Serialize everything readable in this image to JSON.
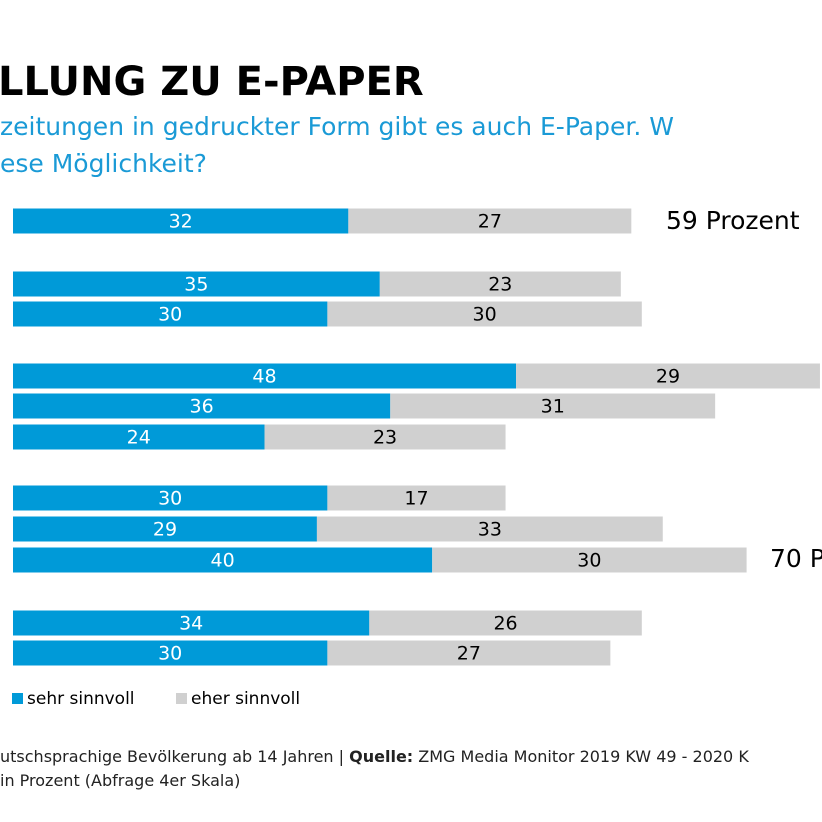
{
  "chart_data": {
    "type": "stacked-barh",
    "title": "LLUNG ZU E-PAPER",
    "subtitle": [
      "zeitungen in gedruckter Form gibt es auch E-Paper. W",
      "ese Möglichkeit?"
    ],
    "categories": [
      null,
      null,
      null,
      null,
      null,
      null,
      null,
      null,
      null,
      null,
      null
    ],
    "series": [
      {
        "name": "sehr sinnvoll",
        "color": "#009ad8",
        "values": [
          32,
          35,
          30,
          48,
          36,
          24,
          30,
          29,
          40,
          34,
          30
        ]
      },
      {
        "name": "eher sinnvoll",
        "color": "#d0d0d0",
        "values": [
          27,
          23,
          30,
          29,
          31,
          23,
          17,
          33,
          30,
          26,
          27
        ]
      }
    ],
    "annotations": [
      "59 Prozent",
      "70 P"
    ],
    "footer": [
      [
        {
          "text": "utschsprachige Bevölkerung ab 14 Jahren | "
        },
        {
          "text": "Quelle:",
          "bold": true
        },
        {
          "text": " ZMG Media Monitor 2019 KW 49 - 2020 K"
        }
      ],
      [
        {
          "text": "in Prozent (Abfrage 4er Skala)"
        }
      ]
    ]
  }
}
